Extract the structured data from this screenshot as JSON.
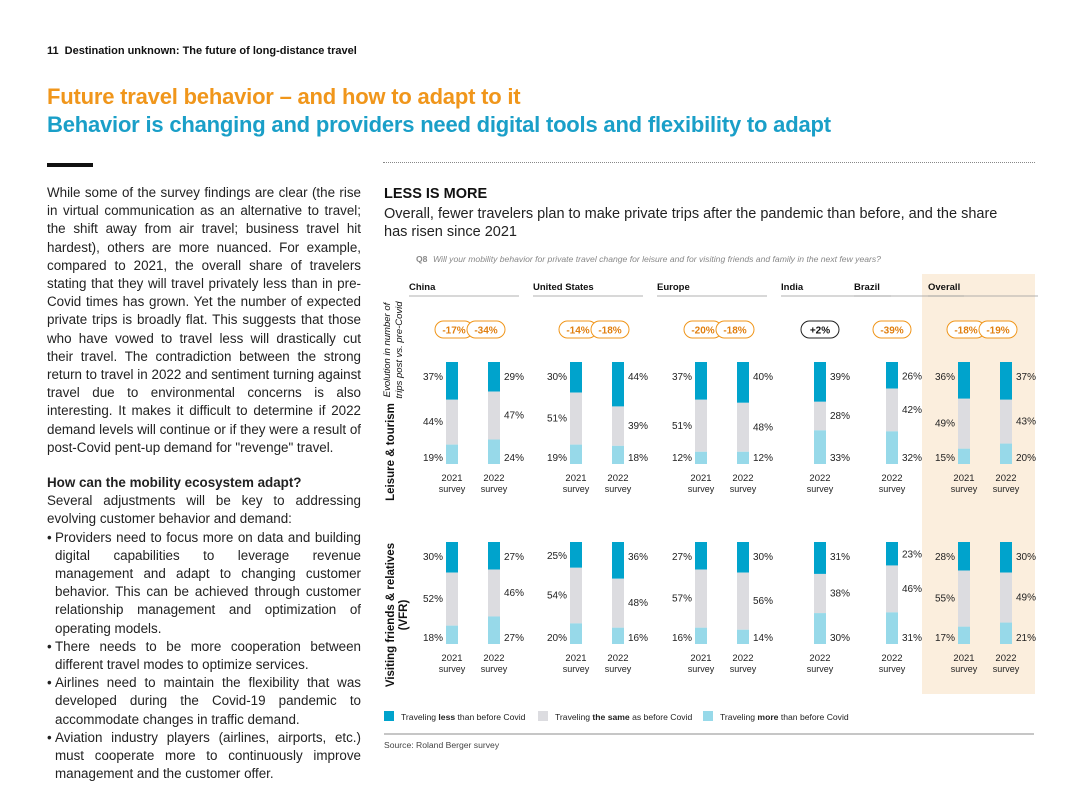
{
  "header": {
    "page_number": "11",
    "title": "Destination unknown: The future of long-distance travel"
  },
  "titles": {
    "line1": "Future travel behavior – and how to adapt to it",
    "line2": "Behavior is changing and providers need digital tools and flexibility to adapt"
  },
  "body": {
    "para1": "While some of the survey findings are clear (the rise in virtual communication as an alternative to travel; the shift away from air travel; business travel hit hardest), others are more nuanced. For example, compared to 2021, the overall share of travelers stating that they will travel privately less than in pre-Covid times has grown. Yet the number of expected private trips is broadly flat. This suggests that those who have vowed to travel less will drastically cut their travel. The contradiction between the strong return to travel in 2022 and sentiment turning against travel due to environmental concerns is also interesting. It makes it difficult to determine if 2022 demand levels will continue or if they were a result of post-Covid pent-up demand for \"revenge\" travel.",
    "heading2": "How can the mobility ecosystem adapt?",
    "para2": "Several adjustments will be key to addressing evolving customer behavior and demand:",
    "bullets": [
      "Providers need to focus more on data and building digital capabilities to leverage revenue management and adapt to changing customer behavior. This can be achieved through customer relationship management and optimization of operating models.",
      "There needs to be more cooperation between different travel modes to optimize services.",
      "Airlines need to maintain the flexibility that was developed during the Covid-19 pandemic to accommodate changes in traffic demand.",
      "Aviation industry players (airlines, airports, etc.) must cooperate more to continuously improve management and the customer offer."
    ]
  },
  "chart": {
    "title": "LESS IS MORE",
    "subtitle": "Overall, fewer travelers plan to make private trips after the pandemic than before, and the share has risen since 2021",
    "question_id": "Q8",
    "question": "Will your mobility behavior for private travel change for leisure and for visiting friends and family in the next few years?",
    "evolution_label_1": "Evolution in number of",
    "evolution_label_2": "trips post vs. pre-Covid",
    "source": "Source: Roland Berger survey"
  },
  "colors": {
    "less": "#00a3cc",
    "same": "#dcdce0",
    "more": "#97d9e9",
    "overall_bg": "#fbeedd",
    "badge_border": "#f0961b",
    "badge_text": "#e07f10",
    "title_orange": "#f0961b",
    "title_blue": "#1a9fc8"
  },
  "chart_data": {
    "type": "bar",
    "stacked": true,
    "normalized_percent": true,
    "legend": [
      {
        "key": "less",
        "prefix": "Traveling ",
        "bold": "less",
        "suffix": " than before Covid"
      },
      {
        "key": "same",
        "prefix": "Traveling ",
        "bold": "the same",
        "suffix": " as before Covid"
      },
      {
        "key": "more",
        "prefix": "Traveling ",
        "bold": "more",
        "suffix": " than before Covid"
      }
    ],
    "category_label_line1": "survey",
    "regions": [
      {
        "name": "China",
        "evolution": [
          "-17%",
          "-34%"
        ],
        "years": [
          "2021",
          "2022"
        ]
      },
      {
        "name": "United States",
        "evolution": [
          "-14%",
          "-18%"
        ],
        "years": [
          "2021",
          "2022"
        ]
      },
      {
        "name": "Europe",
        "evolution": [
          "-20%",
          "-18%"
        ],
        "years": [
          "2021",
          "2022"
        ]
      },
      {
        "name": "India",
        "evolution": [
          "+2%"
        ],
        "years": [
          "2022"
        ]
      },
      {
        "name": "Brazil",
        "evolution": [
          "-39%"
        ],
        "years": [
          "2022"
        ]
      },
      {
        "name": "Overall",
        "evolution": [
          "-18%",
          "-19%"
        ],
        "years": [
          "2021",
          "2022"
        ]
      }
    ],
    "rows": [
      {
        "name": "Leisure & tourism",
        "bars": [
          [
            [
              37,
              44,
              19
            ],
            [
              29,
              47,
              24
            ]
          ],
          [
            [
              30,
              51,
              19
            ],
            [
              44,
              39,
              18
            ]
          ],
          [
            [
              37,
              51,
              12
            ],
            [
              40,
              48,
              12
            ]
          ],
          [
            [
              39,
              28,
              33
            ]
          ],
          [
            [
              26,
              42,
              32
            ]
          ],
          [
            [
              36,
              49,
              15
            ],
            [
              37,
              43,
              20
            ]
          ]
        ]
      },
      {
        "name": "Visiting friends & relatives (VFR)",
        "name_line1": "Visiting friends & relatives",
        "name_line2": "(VFR)",
        "bars": [
          [
            [
              30,
              52,
              18
            ],
            [
              27,
              46,
              27
            ]
          ],
          [
            [
              25,
              54,
              20
            ],
            [
              36,
              48,
              16
            ]
          ],
          [
            [
              27,
              57,
              16
            ],
            [
              30,
              56,
              14
            ]
          ],
          [
            [
              31,
              38,
              30
            ]
          ],
          [
            [
              23,
              46,
              31
            ]
          ],
          [
            [
              28,
              55,
              17
            ],
            [
              30,
              49,
              21
            ]
          ]
        ]
      }
    ]
  }
}
